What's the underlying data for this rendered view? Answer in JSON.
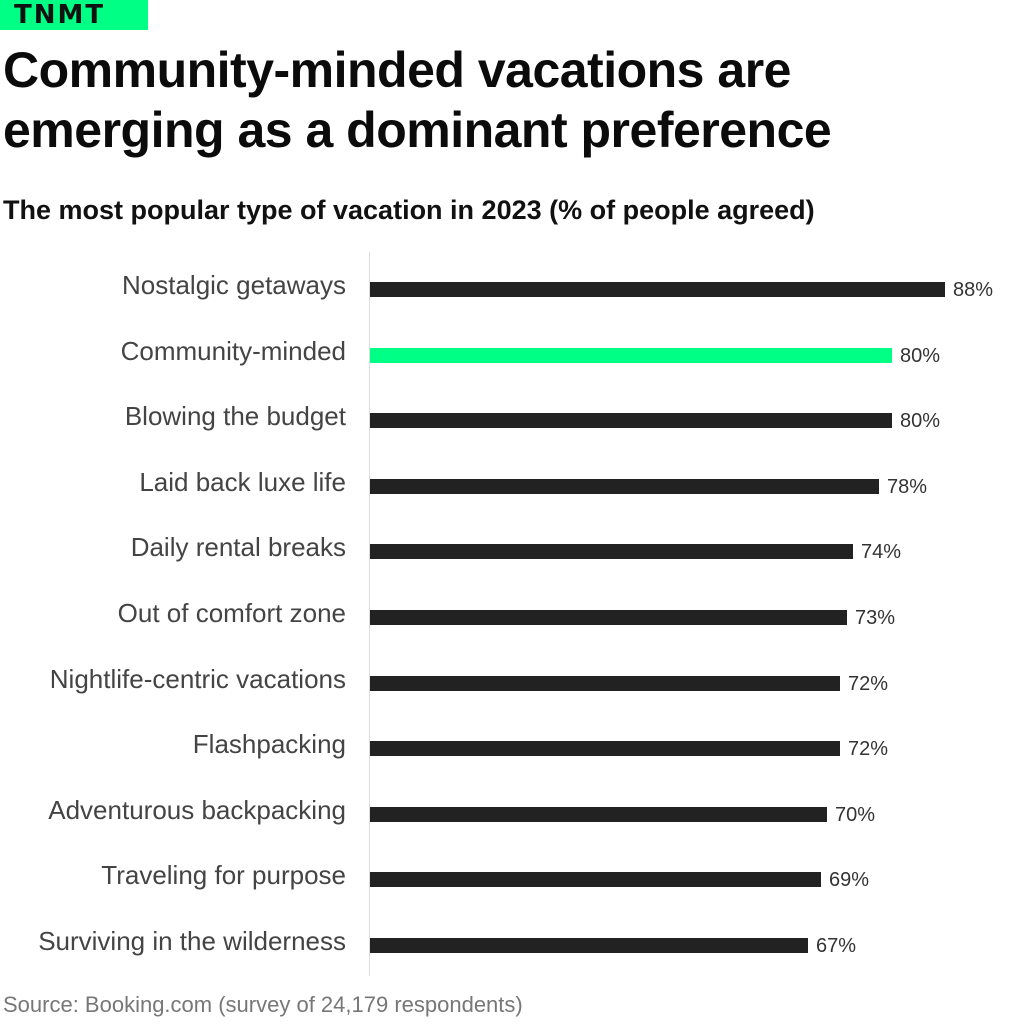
{
  "brand": {
    "label": "TNMT",
    "color": "#00ff85"
  },
  "title": "Community-minded vacations are emerging as a dominant preference",
  "subtitle": "The most popular type of vacation in 2023 (% of people agreed)",
  "source": "Source: Booking.com (survey of 24,179 respondents)",
  "rows": [
    {
      "label": "Nostalgic getaways",
      "value": 88,
      "text": "88%"
    },
    {
      "label": "Community-minded",
      "value": 80,
      "text": "80%"
    },
    {
      "label": "Blowing the budget",
      "value": 80,
      "text": "80%"
    },
    {
      "label": "Laid back luxe life",
      "value": 78,
      "text": "78%"
    },
    {
      "label": "Daily rental breaks",
      "value": 74,
      "text": "74%"
    },
    {
      "label": "Out of comfort zone",
      "value": 73,
      "text": "73%"
    },
    {
      "label": "Nightlife-centric vacations",
      "value": 72,
      "text": "72%"
    },
    {
      "label": "Flashpacking",
      "value": 72,
      "text": "72%"
    },
    {
      "label": "Adventurous backpacking",
      "value": 70,
      "text": "70%"
    },
    {
      "label": "Traveling for purpose",
      "value": 69,
      "text": "69%"
    },
    {
      "label": "Surviving in the wilderness",
      "value": 67,
      "text": "67%"
    }
  ],
  "chart_data": {
    "type": "bar",
    "orientation": "horizontal",
    "title": "Community-minded vacations are emerging as a dominant preference",
    "subtitle": "The most popular type of vacation in 2023 (% of people agreed)",
    "categories": [
      "Nostalgic getaways",
      "Community-minded",
      "Blowing the budget",
      "Laid back luxe life",
      "Daily rental breaks",
      "Out of comfort zone",
      "Nightlife-centric vacations",
      "Flashpacking",
      "Adventurous backpacking",
      "Traveling for purpose",
      "Surviving in the wilderness"
    ],
    "values": [
      88,
      80,
      80,
      78,
      74,
      73,
      72,
      72,
      70,
      69,
      67
    ],
    "highlight": "Community-minded",
    "colors": {
      "default": "#222222",
      "highlight": "#00ff85"
    },
    "xlabel": "",
    "ylabel": "",
    "xlim": [
      0,
      88
    ],
    "grid": false,
    "data_labels": true,
    "source": "Source: Booking.com (survey of 24,179 respondents)"
  }
}
